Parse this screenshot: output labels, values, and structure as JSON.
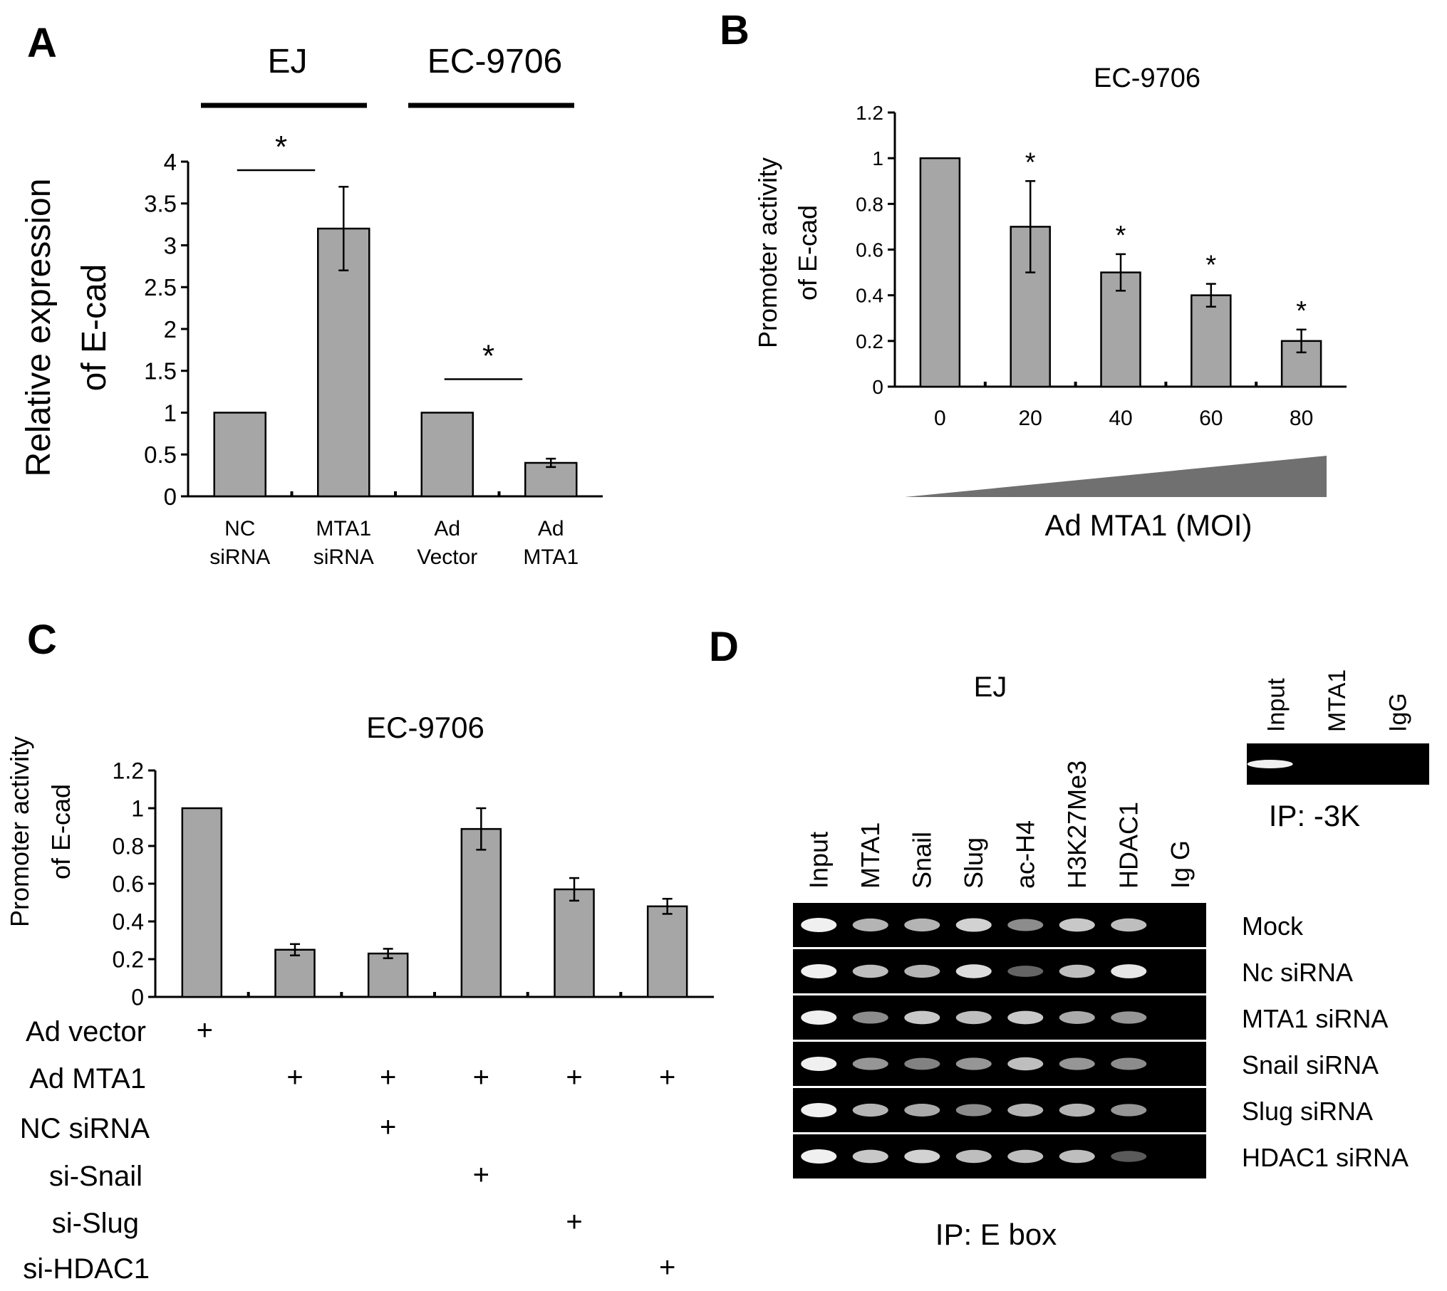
{
  "panels": {
    "A": {
      "letter": "A"
    },
    "B": {
      "letter": "B"
    },
    "C": {
      "letter": "C"
    },
    "D": {
      "letter": "D"
    }
  },
  "chart_data": [
    {
      "panel": "A",
      "type": "bar",
      "group_labels": [
        "EJ",
        "EC-9706"
      ],
      "categories": [
        [
          "NC",
          "siRNA"
        ],
        [
          "MTA1",
          "siRNA"
        ],
        [
          "Ad",
          "Vector"
        ],
        [
          "Ad",
          "MTA1"
        ]
      ],
      "values": [
        1,
        3.2,
        1,
        0.4
      ],
      "errors": [
        0,
        0.5,
        0,
        0.05
      ],
      "ylabel": [
        "Relative expression",
        "of E-cad"
      ],
      "ylim": [
        0,
        4
      ],
      "yticks": [
        "0",
        "0.5",
        "1",
        "1.5",
        "2",
        "2.5",
        "3",
        "3.5",
        "4"
      ],
      "significance": [
        {
          "from": 0,
          "to": 1,
          "label": "*"
        },
        {
          "from": 2,
          "to": 3,
          "label": "*"
        }
      ],
      "bar_color": "#a6a6a6"
    },
    {
      "panel": "B",
      "type": "bar",
      "title": "EC-9706",
      "categories": [
        "0",
        "20",
        "40",
        "60",
        "80"
      ],
      "values": [
        1,
        0.7,
        0.5,
        0.4,
        0.2
      ],
      "errors": [
        0,
        0.2,
        0.08,
        0.05,
        0.05
      ],
      "stars": [
        "",
        "*",
        "*",
        "*",
        "*"
      ],
      "ylabel": [
        "Promoter activity",
        "of E-cad"
      ],
      "xlabel": "Ad MTA1 (MOI)",
      "ylim": [
        0,
        1.2
      ],
      "yticks": [
        "0",
        "0.2",
        "0.4",
        "0.6",
        "0.8",
        "1",
        "1.2"
      ],
      "bar_color": "#a6a6a6",
      "wedge_color": "#707070"
    },
    {
      "panel": "C",
      "type": "bar",
      "title": "EC-9706",
      "values": [
        1,
        0.25,
        0.23,
        0.89,
        0.57,
        0.48
      ],
      "errors": [
        0,
        0.03,
        0.025,
        0.11,
        0.06,
        0.04
      ],
      "ylabel": [
        "Promoter activity",
        "of E-cad"
      ],
      "ylim": [
        0,
        1.2
      ],
      "yticks": [
        "0",
        "0.2",
        "0.4",
        "0.6",
        "0.8",
        "1",
        "1.2"
      ],
      "conditions": [
        {
          "label": "Ad vector",
          "marks": [
            true,
            false,
            false,
            false,
            false,
            false
          ]
        },
        {
          "label": "Ad MTA1",
          "marks": [
            false,
            true,
            true,
            true,
            true,
            true
          ]
        },
        {
          "label": "NC siRNA",
          "marks": [
            false,
            false,
            true,
            false,
            false,
            false
          ]
        },
        {
          "label": "si-Snail",
          "marks": [
            false,
            false,
            false,
            true,
            false,
            false
          ]
        },
        {
          "label": "si-Slug",
          "marks": [
            false,
            false,
            false,
            false,
            true,
            false
          ]
        },
        {
          "label": "si-HDAC1",
          "marks": [
            false,
            false,
            false,
            false,
            false,
            true
          ]
        }
      ],
      "plus_sign": "+",
      "bar_color": "#a6a6a6"
    }
  ],
  "gel": {
    "title": "EJ",
    "columns": [
      "Input",
      "MTA1",
      "Snail",
      "Slug",
      "ac-H4",
      "H3K27Me3",
      "HDAC1",
      "Ig G"
    ],
    "rows": [
      "Mock",
      "Nc siRNA",
      "MTA1 siRNA",
      "Snail   siRNA",
      "Slug   siRNA",
      "HDAC1   siRNA"
    ],
    "band_intensity": [
      [
        1.0,
        0.7,
        0.7,
        0.85,
        0.5,
        0.8,
        0.75,
        0
      ],
      [
        1.0,
        0.75,
        0.7,
        0.9,
        0.3,
        0.75,
        0.95,
        0
      ],
      [
        1.0,
        0.5,
        0.8,
        0.75,
        0.8,
        0.65,
        0.55,
        0
      ],
      [
        1.0,
        0.55,
        0.45,
        0.55,
        0.75,
        0.55,
        0.5,
        0
      ],
      [
        1.0,
        0.7,
        0.65,
        0.5,
        0.7,
        0.7,
        0.55,
        0
      ],
      [
        1.0,
        0.8,
        0.85,
        0.75,
        0.75,
        0.75,
        0.25,
        0
      ]
    ],
    "caption": "IP: E box"
  },
  "gel_small": {
    "columns": [
      "Input",
      "MTA1",
      "IgG"
    ],
    "band_intensity": [
      1.0,
      0,
      0
    ],
    "caption": "IP: -3K"
  }
}
